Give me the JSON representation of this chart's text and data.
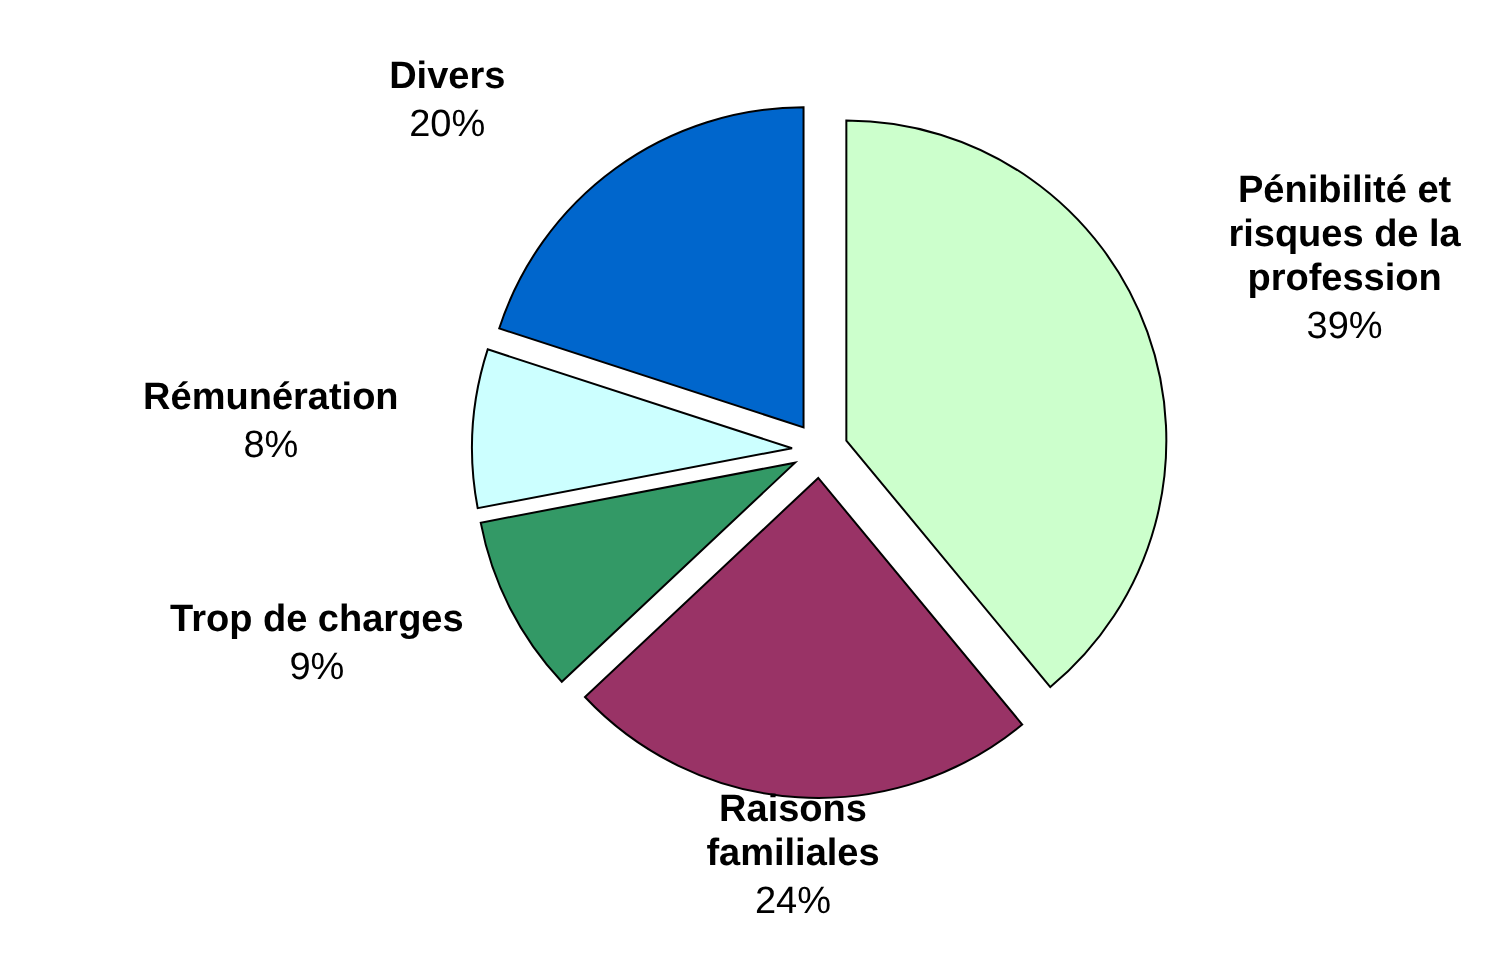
{
  "chart_data": {
    "type": "pie",
    "categories": [
      "Pénibilité et\nrisques de la\nprofession",
      "Raisons\nfamiliales",
      "Trop de charges",
      "Rémunération",
      "Divers"
    ],
    "values": [
      39,
      24,
      9,
      8,
      20
    ],
    "value_labels": [
      "39%",
      "24%",
      "9%",
      "8%",
      "20%"
    ],
    "colors": [
      "#ccffcc",
      "#993366",
      "#339966",
      "#ccffff",
      "#0066cc"
    ],
    "legend": false
  }
}
